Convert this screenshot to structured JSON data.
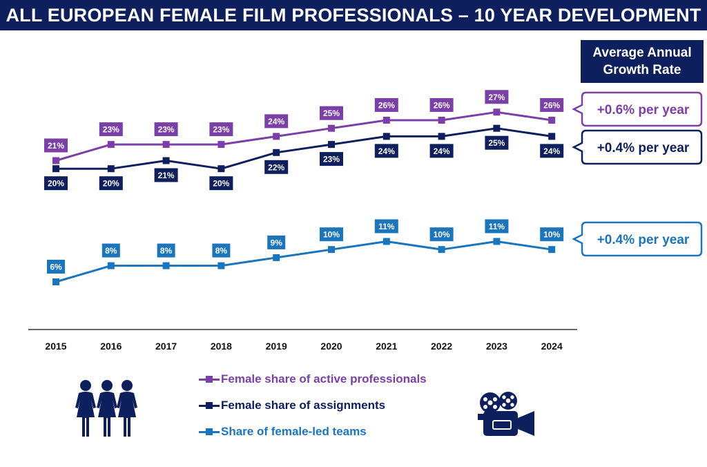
{
  "title": "ALL EUROPEAN FEMALE FILM PROFESSIONALS – 10 YEAR DEVELOPMENT",
  "growth_header": [
    "Average Annual",
    "Growth Rate"
  ],
  "colors": {
    "navy": "#0d1f5c",
    "purple": "#7b3fa8",
    "blue": "#1a75bc"
  },
  "icons": [
    "women-group-icon",
    "film-camera-icon"
  ],
  "chart_data": {
    "type": "line",
    "categories": [
      "2015",
      "2016",
      "2017",
      "2018",
      "2019",
      "2020",
      "2021",
      "2022",
      "2023",
      "2024"
    ],
    "series": [
      {
        "name": "Female share of active professionals",
        "color": "#7b3fa8",
        "values": [
          21,
          23,
          23,
          23,
          24,
          25,
          26,
          26,
          27,
          26
        ],
        "labels": [
          "21%",
          "23%",
          "23%",
          "23%",
          "24%",
          "25%",
          "26%",
          "26%",
          "27%",
          "26%"
        ],
        "label_position": "above",
        "growth": "+0.6% per year"
      },
      {
        "name": "Female share of assignments",
        "color": "#0d1f5c",
        "values": [
          20,
          20,
          21,
          20,
          22,
          23,
          24,
          24,
          25,
          24
        ],
        "labels": [
          "20%",
          "20%",
          "21%",
          "20%",
          "22%",
          "23%",
          "24%",
          "24%",
          "25%",
          "24%"
        ],
        "label_position": "below",
        "growth": "+0.4% per year"
      },
      {
        "name": "Share of female-led teams",
        "color": "#1a75bc",
        "values": [
          6,
          8,
          8,
          8,
          9,
          10,
          11,
          10,
          11,
          10
        ],
        "labels": [
          "6%",
          "8%",
          "8%",
          "8%",
          "9%",
          "10%",
          "11%",
          "10%",
          "11%",
          "10%"
        ],
        "label_position": "above",
        "growth": "+0.4% per year"
      }
    ],
    "ylim": [
      1,
      30
    ],
    "grid": false,
    "legend_position": "bottom"
  }
}
